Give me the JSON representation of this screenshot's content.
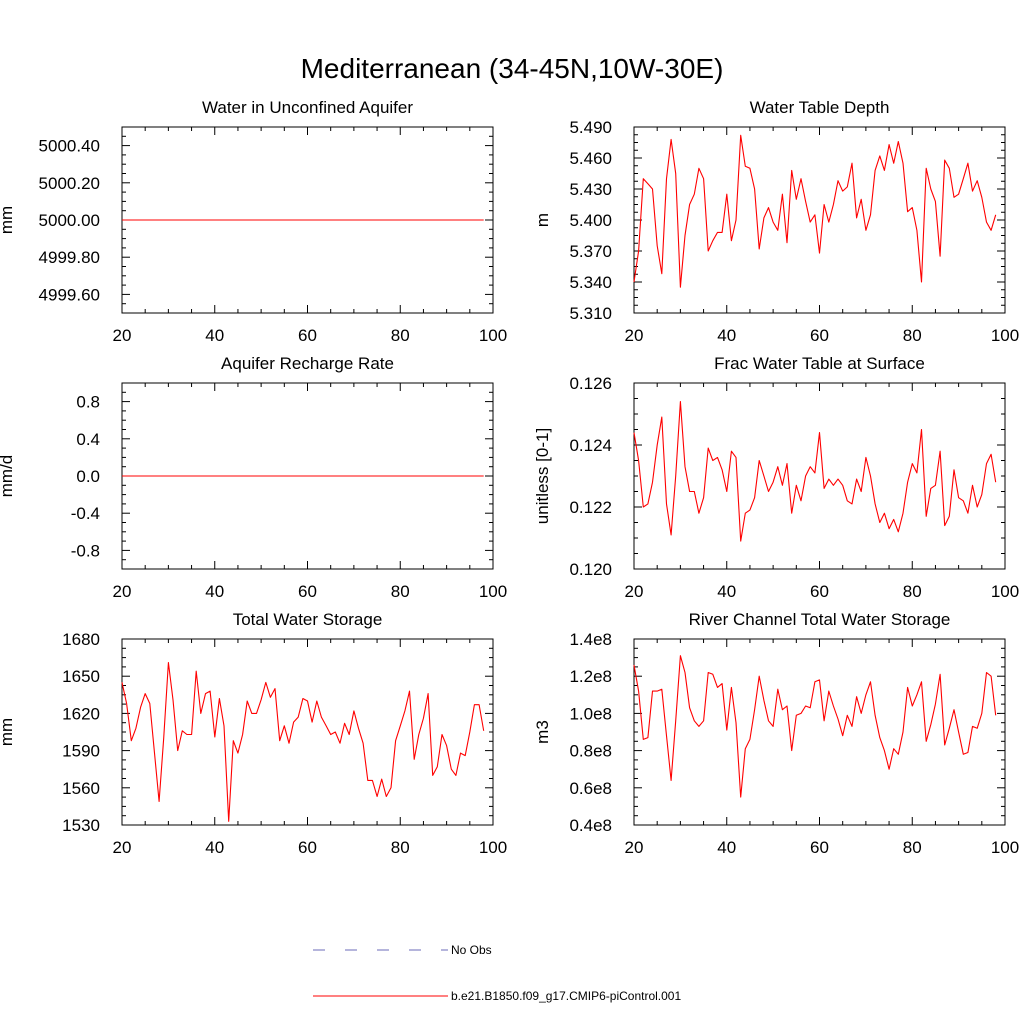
{
  "title": "Mediterranean (34-45N,10W-30E)",
  "line_color": "#ff0000",
  "obs_color": "#6b6bb8",
  "legend": {
    "obs_label": "No Obs",
    "model_label": "b.e21.B1850.f09_g17.CMIP6-piControl.001"
  },
  "chart_data": [
    {
      "type": "line",
      "title": "Water in Unconfined Aquifer",
      "ylabel": "mm",
      "xlim": [
        20,
        100
      ],
      "ylim": [
        4999.5,
        5000.5
      ],
      "xticks": [
        20,
        40,
        60,
        80,
        100
      ],
      "yticks": [
        4999.6,
        4999.8,
        5000.0,
        5000.2,
        5000.4
      ],
      "ytick_labels": [
        "4999.60",
        "4999.80",
        "5000.00",
        "5000.20",
        "5000.40"
      ],
      "x": [
        20,
        98
      ],
      "values": [
        5000.0,
        5000.0
      ]
    },
    {
      "type": "line",
      "title": "Water Table Depth",
      "ylabel": "m",
      "xlim": [
        20,
        100
      ],
      "ylim": [
        5.31,
        5.49
      ],
      "xticks": [
        20,
        40,
        60,
        80,
        100
      ],
      "yticks": [
        5.31,
        5.34,
        5.37,
        5.4,
        5.43,
        5.46,
        5.49
      ],
      "ytick_labels": [
        "5.310",
        "5.340",
        "5.370",
        "5.400",
        "5.430",
        "5.460",
        "5.490"
      ],
      "x0": 20,
      "values": [
        5.34,
        5.37,
        5.44,
        5.435,
        5.43,
        5.375,
        5.348,
        5.44,
        5.478,
        5.445,
        5.335,
        5.385,
        5.415,
        5.425,
        5.45,
        5.44,
        5.37,
        5.38,
        5.388,
        5.388,
        5.425,
        5.38,
        5.4,
        5.482,
        5.452,
        5.45,
        5.43,
        5.372,
        5.402,
        5.412,
        5.398,
        5.39,
        5.425,
        5.378,
        5.448,
        5.42,
        5.44,
        5.418,
        5.398,
        5.405,
        5.368,
        5.415,
        5.398,
        5.415,
        5.438,
        5.428,
        5.432,
        5.455,
        5.402,
        5.42,
        5.39,
        5.405,
        5.448,
        5.462,
        5.448,
        5.473,
        5.455,
        5.476,
        5.455,
        5.408,
        5.412,
        5.39,
        5.34,
        5.45,
        5.43,
        5.418,
        5.365,
        5.458,
        5.45,
        5.422,
        5.425,
        5.44,
        5.455,
        5.428,
        5.438,
        5.422,
        5.398,
        5.39,
        5.405
      ]
    },
    {
      "type": "line",
      "title": "Aquifer Recharge Rate",
      "ylabel": "mm/d",
      "xlim": [
        20,
        100
      ],
      "ylim": [
        -1.0,
        1.0
      ],
      "xticks": [
        20,
        40,
        60,
        80,
        100
      ],
      "yticks": [
        -0.8,
        -0.4,
        0.0,
        0.4,
        0.8
      ],
      "ytick_labels": [
        "-0.8",
        "-0.4",
        "0.0",
        "0.4",
        "0.8"
      ],
      "x": [
        20,
        98
      ],
      "values": [
        0.0,
        0.0
      ]
    },
    {
      "type": "line",
      "title": "Frac Water Table at Surface",
      "ylabel": "unitless [0-1]",
      "xlim": [
        20,
        100
      ],
      "ylim": [
        0.12,
        0.126
      ],
      "xticks": [
        20,
        40,
        60,
        80,
        100
      ],
      "yticks": [
        0.12,
        0.122,
        0.124,
        0.126
      ],
      "ytick_labels": [
        "0.120",
        "0.122",
        "0.124",
        "0.126"
      ],
      "x0": 20,
      "values": [
        0.1244,
        0.1235,
        0.122,
        0.1221,
        0.1228,
        0.124,
        0.1249,
        0.1221,
        0.1211,
        0.123,
        0.1254,
        0.1233,
        0.1225,
        0.1225,
        0.1218,
        0.1223,
        0.1239,
        0.1235,
        0.1236,
        0.1232,
        0.1225,
        0.1238,
        0.1236,
        0.1209,
        0.1218,
        0.1219,
        0.1223,
        0.1235,
        0.123,
        0.1225,
        0.1228,
        0.1233,
        0.1227,
        0.1234,
        0.1218,
        0.1227,
        0.1222,
        0.123,
        0.1233,
        0.1231,
        0.1244,
        0.1226,
        0.1229,
        0.1227,
        0.1229,
        0.1227,
        0.1222,
        0.1221,
        0.1229,
        0.1225,
        0.1236,
        0.123,
        0.1221,
        0.1215,
        0.1218,
        0.1213,
        0.1216,
        0.1212,
        0.1218,
        0.1228,
        0.1234,
        0.1231,
        0.1245,
        0.1217,
        0.1226,
        0.1227,
        0.1238,
        0.1214,
        0.1217,
        0.1232,
        0.1223,
        0.1222,
        0.1218,
        0.1227,
        0.122,
        0.1224,
        0.1234,
        0.1237,
        0.1228
      ]
    },
    {
      "type": "line",
      "title": "Total Water Storage",
      "ylabel": "mm",
      "xlim": [
        20,
        100
      ],
      "ylim": [
        1530,
        1680
      ],
      "xticks": [
        20,
        40,
        60,
        80,
        100
      ],
      "yticks": [
        1530,
        1560,
        1590,
        1620,
        1650,
        1680
      ],
      "ytick_labels": [
        "1530",
        "1560",
        "1590",
        "1620",
        "1650",
        "1680"
      ],
      "x0": 20,
      "values": [
        1645,
        1628,
        1598,
        1608,
        1625,
        1636,
        1628,
        1588,
        1549,
        1600,
        1661,
        1631,
        1590,
        1606,
        1603,
        1603,
        1654,
        1620,
        1636,
        1638,
        1601,
        1632,
        1610,
        1533,
        1598,
        1588,
        1603,
        1630,
        1620,
        1620,
        1631,
        1645,
        1633,
        1640,
        1598,
        1610,
        1596,
        1613,
        1617,
        1632,
        1630,
        1613,
        1630,
        1617,
        1610,
        1603,
        1605,
        1596,
        1612,
        1603,
        1622,
        1608,
        1596,
        1566,
        1566,
        1553,
        1567,
        1553,
        1560,
        1598,
        1610,
        1622,
        1638,
        1583,
        1603,
        1616,
        1636,
        1570,
        1577,
        1603,
        1594,
        1575,
        1570,
        1588,
        1586,
        1605,
        1627,
        1627,
        1606
      ]
    },
    {
      "type": "line",
      "title": "River Channel Total Water Storage",
      "ylabel": "m3",
      "xlim": [
        20,
        100
      ],
      "ylim": [
        0.4,
        1.4
      ],
      "yunit_note": "e8",
      "xticks": [
        20,
        40,
        60,
        80,
        100
      ],
      "yticks": [
        0.4,
        0.6,
        0.8,
        1.0,
        1.2,
        1.4
      ],
      "ytick_labels": [
        "0.4e8",
        "0.6e8",
        "0.8e8",
        "1.0e8",
        "1.2e8",
        "1.4e8"
      ],
      "x0": 20,
      "values": [
        1.26,
        1.12,
        0.86,
        0.87,
        1.12,
        1.12,
        1.13,
        0.88,
        0.64,
        0.96,
        1.31,
        1.22,
        1.03,
        0.96,
        0.93,
        0.96,
        1.22,
        1.21,
        1.14,
        1.16,
        0.91,
        1.14,
        0.95,
        0.55,
        0.81,
        0.86,
        1.02,
        1.2,
        1.07,
        0.96,
        0.93,
        1.13,
        1.02,
        1.04,
        0.8,
        0.99,
        1.0,
        1.04,
        1.03,
        1.17,
        1.18,
        0.96,
        1.12,
        1.04,
        0.97,
        0.88,
        0.99,
        0.93,
        1.09,
        1.0,
        1.1,
        1.17,
        0.99,
        0.87,
        0.8,
        0.7,
        0.81,
        0.78,
        0.9,
        1.14,
        1.04,
        1.1,
        1.17,
        0.85,
        0.94,
        1.05,
        1.21,
        0.83,
        0.92,
        1.02,
        0.9,
        0.78,
        0.79,
        0.93,
        0.92,
        1.0,
        1.22,
        1.2,
        0.99
      ]
    }
  ]
}
